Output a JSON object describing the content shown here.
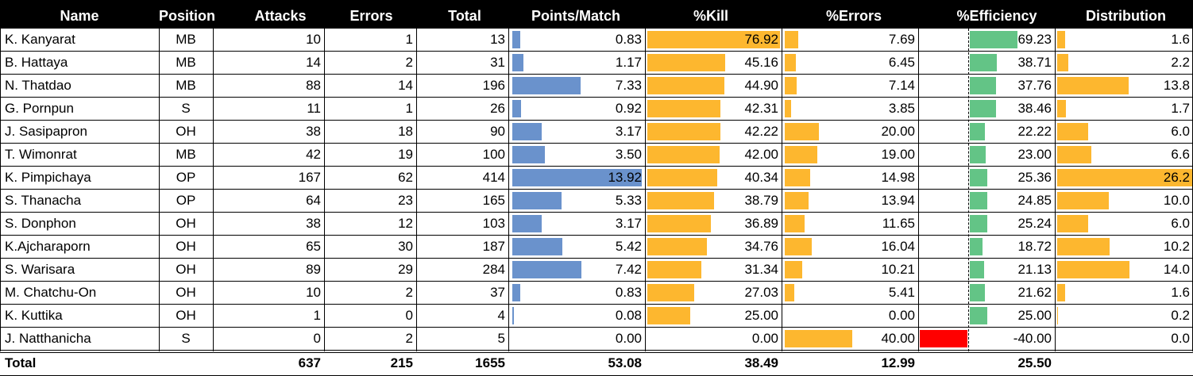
{
  "columns": {
    "name": "Name",
    "position": "Position",
    "attacks": "Attacks",
    "errors": "Errors",
    "total": "Total",
    "points_per_match": "Points/Match",
    "kill_pct": "%Kill",
    "errors_pct": "%Errors",
    "efficiency_pct": "%Efficiency",
    "distribution": "Distribution"
  },
  "rows": [
    {
      "name": "K. Kanyarat",
      "position": "MB",
      "attacks": "10",
      "errors": "1",
      "total": "13",
      "points_per_match": "0.83",
      "kill_pct": "76.92",
      "errors_pct": "7.69",
      "efficiency_pct": "69.23",
      "distribution": "1.6"
    },
    {
      "name": "B. Hattaya",
      "position": "MB",
      "attacks": "14",
      "errors": "2",
      "total": "31",
      "points_per_match": "1.17",
      "kill_pct": "45.16",
      "errors_pct": "6.45",
      "efficiency_pct": "38.71",
      "distribution": "2.2"
    },
    {
      "name": "N. Thatdao",
      "position": "MB",
      "attacks": "88",
      "errors": "14",
      "total": "196",
      "points_per_match": "7.33",
      "kill_pct": "44.90",
      "errors_pct": "7.14",
      "efficiency_pct": "37.76",
      "distribution": "13.8"
    },
    {
      "name": "G. Pornpun",
      "position": "S",
      "attacks": "11",
      "errors": "1",
      "total": "26",
      "points_per_match": "0.92",
      "kill_pct": "42.31",
      "errors_pct": "3.85",
      "efficiency_pct": "38.46",
      "distribution": "1.7"
    },
    {
      "name": "J. Sasipapron",
      "position": "OH",
      "attacks": "38",
      "errors": "18",
      "total": "90",
      "points_per_match": "3.17",
      "kill_pct": "42.22",
      "errors_pct": "20.00",
      "efficiency_pct": "22.22",
      "distribution": "6.0"
    },
    {
      "name": "T. Wimonrat",
      "position": "MB",
      "attacks": "42",
      "errors": "19",
      "total": "100",
      "points_per_match": "3.50",
      "kill_pct": "42.00",
      "errors_pct": "19.00",
      "efficiency_pct": "23.00",
      "distribution": "6.6"
    },
    {
      "name": "K. Pimpichaya",
      "position": "OP",
      "attacks": "167",
      "errors": "62",
      "total": "414",
      "points_per_match": "13.92",
      "kill_pct": "40.34",
      "errors_pct": "14.98",
      "efficiency_pct": "25.36",
      "distribution": "26.2"
    },
    {
      "name": "S. Thanacha",
      "position": "OP",
      "attacks": "64",
      "errors": "23",
      "total": "165",
      "points_per_match": "5.33",
      "kill_pct": "38.79",
      "errors_pct": "13.94",
      "efficiency_pct": "24.85",
      "distribution": "10.0"
    },
    {
      "name": "S. Donphon",
      "position": "OH",
      "attacks": "38",
      "errors": "12",
      "total": "103",
      "points_per_match": "3.17",
      "kill_pct": "36.89",
      "errors_pct": "11.65",
      "efficiency_pct": "25.24",
      "distribution": "6.0"
    },
    {
      "name": "K.Ajcharaporn",
      "position": "OH",
      "attacks": "65",
      "errors": "30",
      "total": "187",
      "points_per_match": "5.42",
      "kill_pct": "34.76",
      "errors_pct": "16.04",
      "efficiency_pct": "18.72",
      "distribution": "10.2"
    },
    {
      "name": "S. Warisara",
      "position": "OH",
      "attacks": "89",
      "errors": "29",
      "total": "284",
      "points_per_match": "7.42",
      "kill_pct": "31.34",
      "errors_pct": "10.21",
      "efficiency_pct": "21.13",
      "distribution": "14.0"
    },
    {
      "name": "M. Chatchu-On",
      "position": "OH",
      "attacks": "10",
      "errors": "2",
      "total": "37",
      "points_per_match": "0.83",
      "kill_pct": "27.03",
      "errors_pct": "5.41",
      "efficiency_pct": "21.62",
      "distribution": "1.6"
    },
    {
      "name": "K. Kuttika",
      "position": "OH",
      "attacks": "1",
      "errors": "0",
      "total": "4",
      "points_per_match": "0.08",
      "kill_pct": "25.00",
      "errors_pct": "0.00",
      "efficiency_pct": "25.00",
      "distribution": "0.2"
    },
    {
      "name": "J. Natthanicha",
      "position": "S",
      "attacks": "0",
      "errors": "2",
      "total": "5",
      "points_per_match": "0.00",
      "kill_pct": "0.00",
      "errors_pct": "40.00",
      "efficiency_pct": "-40.00",
      "distribution": "0.0"
    }
  ],
  "totals": {
    "label": "Total",
    "attacks": "637",
    "errors": "215",
    "total": "1655",
    "points_per_match": "53.08",
    "kill_pct": "38.49",
    "errors_pct": "12.99",
    "efficiency_pct": "25.50"
  },
  "colors": {
    "header_bg": "#000000",
    "header_text": "#ffffff",
    "points_bar": "#6a92cc",
    "kill_bar": "#fdb72f",
    "errors_bar": "#fdb72f",
    "errors_bar_extreme": "#ff0000",
    "efficiency_bar": "#63c486",
    "distribution_bar": "#fdb72f"
  }
}
